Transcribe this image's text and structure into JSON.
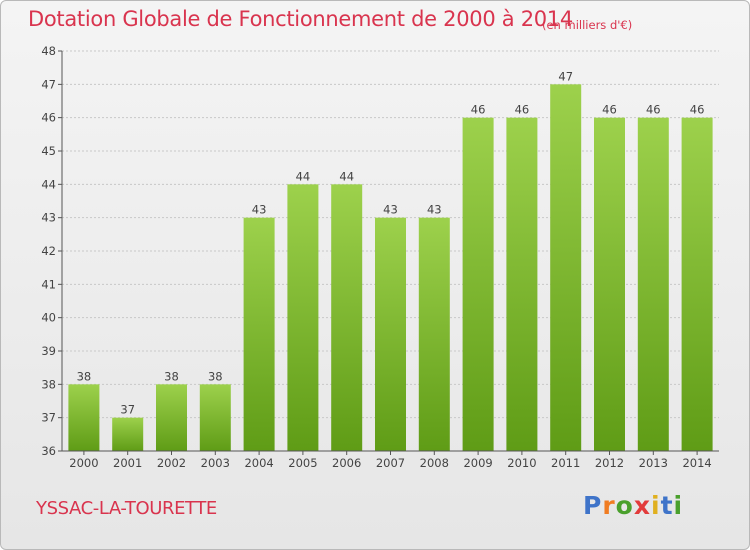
{
  "title": "Dotation Globale de Fonctionnement de 2000 à 2014",
  "unit": "(en milliers d'€)",
  "commune": "YSSAC-LA-TOURETTE",
  "logo": {
    "text": "Proxiti",
    "letter_colors": [
      "#3f74c9",
      "#f07c22",
      "#4aa02c",
      "#e23b3b",
      "#e0b01f",
      "#3f74c9",
      "#4aa02c"
    ]
  },
  "colors": {
    "accent": "#d9344e",
    "bar_top": "#9dd14c",
    "bar_bottom": "#5f9c16",
    "grid": "#c8c8c8",
    "axis": "#555555",
    "text": "#444444"
  },
  "chart_data": {
    "type": "bar",
    "title": "Dotation Globale de Fonctionnement de 2000 à 2014",
    "xlabel": "",
    "ylabel": "",
    "categories": [
      "2000",
      "2001",
      "2002",
      "2003",
      "2004",
      "2005",
      "2006",
      "2007",
      "2008",
      "2009",
      "2010",
      "2011",
      "2012",
      "2013",
      "2014"
    ],
    "values": [
      38,
      37,
      38,
      38,
      43,
      44,
      44,
      43,
      43,
      46,
      46,
      47,
      46,
      46,
      46
    ],
    "data_labels": [
      "38",
      "37",
      "38",
      "38",
      "43",
      "44",
      "44",
      "43",
      "43",
      "46",
      "46",
      "47",
      "46",
      "46",
      "46"
    ],
    "ylim": [
      36,
      48
    ],
    "yticks": [
      36,
      37,
      38,
      39,
      40,
      41,
      42,
      43,
      44,
      45,
      46,
      47,
      48
    ],
    "grid": true,
    "legend": "none"
  }
}
